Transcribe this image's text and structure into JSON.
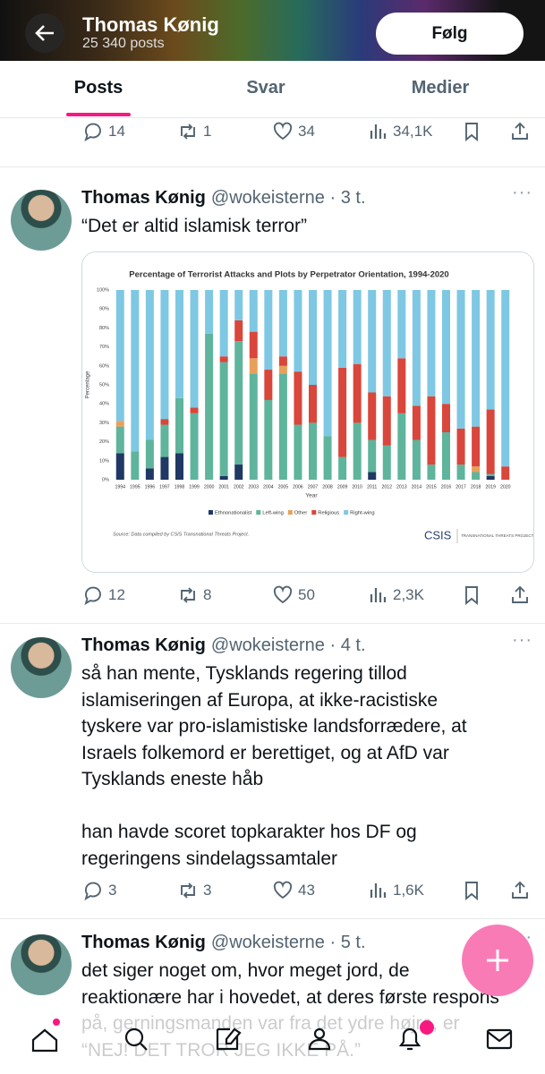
{
  "header": {
    "name": "Thomas Kønig",
    "posts": "25 340 posts",
    "follow": "Følg"
  },
  "tabs": [
    "Posts",
    "Svar",
    "Medier"
  ],
  "top_metrics": {
    "replies": "14",
    "reposts": "1",
    "likes": "34",
    "views": "34,1K"
  },
  "tweets": [
    {
      "name": "Thomas Kønig",
      "handle": "@wokeisterne",
      "time": "3 t.",
      "paragraphs": [
        [
          "“Det er altid islamisk terror”"
        ]
      ],
      "metrics": {
        "replies": "12",
        "reposts": "8",
        "likes": "50",
        "views": "2,3K"
      }
    },
    {
      "name": "Thomas Kønig",
      "handle": "@wokeisterne",
      "time": "4 t.",
      "paragraphs": [
        [
          "så han mente, Tysklands regering tillod",
          "islamiseringen af Europa, at ikke-racistiske",
          "tyskere var pro-islamistiske landsforrædere, at",
          "Israels folkemord er berettiget, og at AfD var",
          "Tysklands eneste håb"
        ],
        [
          "han havde scoret topkarakter hos DF og",
          "regeringens sindelagssamtaler"
        ]
      ],
      "metrics": {
        "replies": "3",
        "reposts": "3",
        "likes": "43",
        "views": "1,6K"
      }
    },
    {
      "name": "Thomas Kønig",
      "handle": "@wokeisterne",
      "time": "5 t.",
      "paragraphs": [
        [
          "det siger noget om, hvor meget jord, de",
          "reaktionære har i hovedet, at deres første respons",
          "på, gerningsmanden var fra det ydre højre, er",
          "“NEJ! DET TROR JEG IKKE PÅ.”"
        ]
      ]
    }
  ],
  "chart_data": {
    "type": "stacked-bar",
    "title": "Percentage of Terrorist Attacks and Plots by Perpetrator Orientation, 1994-2020",
    "x_label": "Year",
    "y_label": "Percentage",
    "categories": [
      "1994",
      "1995",
      "1996",
      "1997",
      "1998",
      "1999",
      "2000",
      "2001",
      "2002",
      "2003",
      "2004",
      "2005",
      "2006",
      "2007",
      "2008",
      "2009",
      "2010",
      "2011",
      "2012",
      "2013",
      "2014",
      "2015",
      "2016",
      "2017",
      "2018",
      "2019",
      "2020"
    ],
    "series": [
      {
        "name": "Ethnonationalist",
        "color": "#1f3864",
        "values": [
          14,
          0,
          6,
          12,
          14,
          0,
          0,
          2,
          8,
          0,
          0,
          0,
          0,
          0,
          0,
          0,
          0,
          4,
          0,
          0,
          0,
          0,
          0,
          0,
          0,
          2,
          0
        ]
      },
      {
        "name": "Left-wing",
        "color": "#5fb49c",
        "values": [
          14,
          15,
          15,
          17,
          29,
          35,
          77,
          60,
          65,
          56,
          42,
          56,
          29,
          30,
          23,
          12,
          30,
          17,
          18,
          35,
          21,
          8,
          25,
          8,
          4,
          1,
          0
        ]
      },
      {
        "name": "Other",
        "color": "#e8a15a",
        "values": [
          3,
          0,
          0,
          0,
          0,
          0,
          0,
          0,
          0,
          8,
          0,
          4,
          0,
          0,
          0,
          0,
          0,
          0,
          0,
          0,
          0,
          0,
          0,
          0,
          3,
          0,
          0
        ]
      },
      {
        "name": "Religious",
        "color": "#d9463b",
        "values": [
          0,
          0,
          0,
          3,
          0,
          3,
          0,
          3,
          11,
          14,
          16,
          5,
          28,
          20,
          0,
          47,
          31,
          25,
          26,
          29,
          18,
          36,
          15,
          19,
          21,
          34,
          7
        ]
      },
      {
        "name": "Right-wing",
        "color": "#7ec8e3",
        "values": [
          69,
          85,
          79,
          68,
          57,
          62,
          23,
          35,
          16,
          22,
          42,
          35,
          43,
          50,
          77,
          41,
          39,
          54,
          56,
          36,
          61,
          56,
          60,
          73,
          72,
          63,
          93
        ]
      }
    ],
    "ylim": [
      0,
      100
    ],
    "yticks": [
      {
        "value": 0,
        "label": "0%"
      },
      {
        "value": 10,
        "label": "10%"
      },
      {
        "value": 20,
        "label": "20%"
      },
      {
        "value": 30,
        "label": "30%"
      },
      {
        "value": 40,
        "label": "40%"
      },
      {
        "value": 50,
        "label": "50%"
      },
      {
        "value": 60,
        "label": "60%"
      },
      {
        "value": 70,
        "label": "70%"
      },
      {
        "value": 80,
        "label": "80%"
      },
      {
        "value": 90,
        "label": "90%"
      },
      {
        "value": 100,
        "label": "100%"
      }
    ],
    "source": "Source: Data compiled by CSIS Transnational Threats Project.",
    "logo": "CSIS",
    "logo_sub": "TRANSNATIONAL THREATS PROJECT"
  }
}
